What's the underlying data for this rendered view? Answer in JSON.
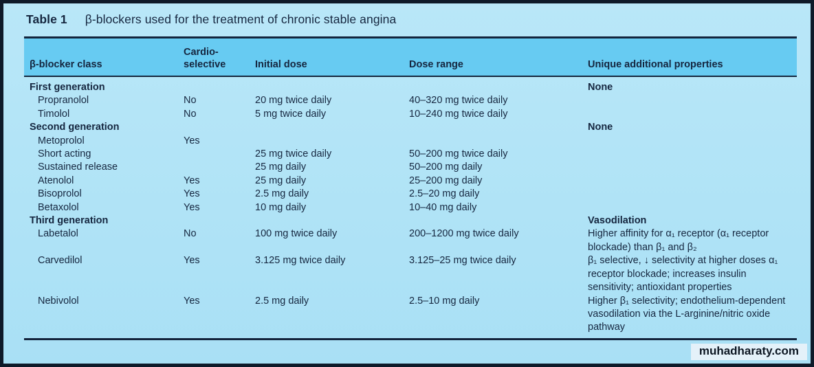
{
  "title": {
    "label": "Table 1",
    "text": "β-blockers used for the treatment of chronic stable angina"
  },
  "columns": {
    "class": "β-blocker class",
    "cardio": "Cardio-selective",
    "initial": "Initial dose",
    "range": "Dose range",
    "props": "Unique additional properties"
  },
  "rows": [
    {
      "name": "First generation",
      "props": "None"
    },
    {
      "name": "Propranolol",
      "cardio": "No",
      "initial": "20 mg twice daily",
      "range": "40–320 mg twice daily"
    },
    {
      "name": "Timolol",
      "cardio": "No",
      "initial": "5 mg twice daily",
      "range": "10–240 mg twice daily"
    },
    {
      "name": "Second generation",
      "props": "None"
    },
    {
      "name": "Metoprolol",
      "cardio": "Yes"
    },
    {
      "name": "Short acting",
      "initial": "25 mg twice daily",
      "range": "50–200 mg twice daily"
    },
    {
      "name": "Sustained release",
      "initial": "25 mg daily",
      "range": "50–200 mg daily"
    },
    {
      "name": "Atenolol",
      "cardio": "Yes",
      "initial": "25 mg daily",
      "range": "25–200 mg daily"
    },
    {
      "name": "Bisoprolol",
      "cardio": "Yes",
      "initial": "2.5 mg daily",
      "range": "2.5–20 mg daily"
    },
    {
      "name": "Betaxolol",
      "cardio": "Yes",
      "initial": "10 mg daily",
      "range": "10–40 mg daily"
    },
    {
      "name": "Third generation",
      "props": "Vasodilation"
    },
    {
      "name": "Labetalol",
      "cardio": "No",
      "initial": "100 mg twice daily",
      "range": "200–1200 mg twice daily",
      "props": "Higher affinity for α₁ receptor (α₁ receptor blockade) than β₁ and β₂"
    },
    {
      "name": "Carvedilol",
      "cardio": "Yes",
      "initial": "3.125 mg twice daily",
      "range": "3.125–25 mg twice daily",
      "props": "β₁ selective, ↓ selectivity at higher doses α₁ receptor blockade; increases insulin sensitivity; antioxidant properties"
    },
    {
      "name": "Nebivolol",
      "cardio": "Yes",
      "initial": "2.5 mg daily",
      "range": "2.5–10 mg daily",
      "props": "Higher β₁ selectivity; endothelium-dependent vasodilation via the L-arginine/nitric oxide pathway"
    }
  ],
  "watermark": {
    "text": "muhadharaty.com"
  },
  "colors": {
    "frame_border": "#0e1a29",
    "body_bg": "#ace1f6",
    "header_bg": "#67cbf2",
    "text": "#15263f",
    "rule": "#13243c",
    "watermark_bg": "#e4f1f9"
  }
}
